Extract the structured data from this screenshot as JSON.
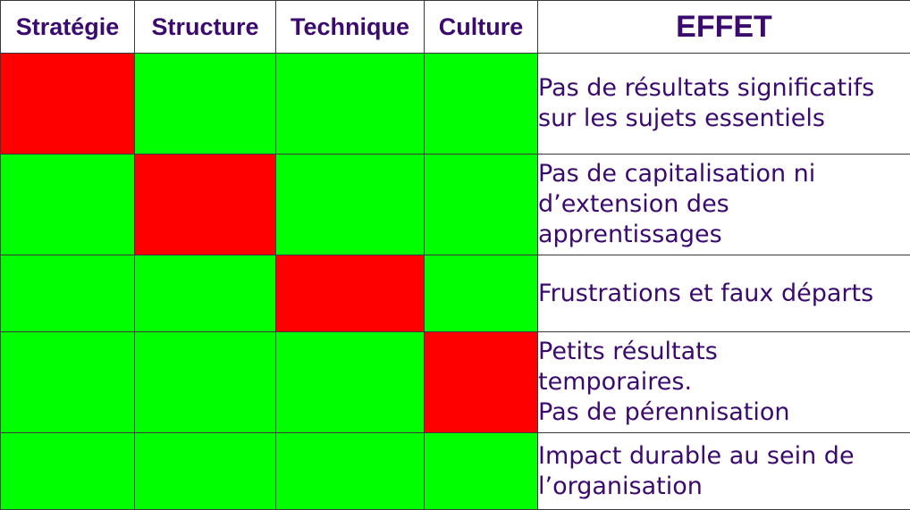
{
  "colors": {
    "fail": "#ff0000",
    "ok": "#00ff00",
    "text": "#3b0a6e"
  },
  "headers": {
    "strategie": "Stratégie",
    "structure": "Structure",
    "technique": "Technique",
    "culture": "Culture",
    "effet": "EFFET"
  },
  "rows": [
    {
      "states": [
        "fail",
        "ok",
        "ok",
        "ok"
      ],
      "effect": "Pas de résultats significatifs\nsur les sujets essentiels"
    },
    {
      "states": [
        "ok",
        "fail",
        "ok",
        "ok"
      ],
      "effect": "Pas de capitalisation ni\nd’extension des\napprentissages"
    },
    {
      "states": [
        "ok",
        "ok",
        "fail",
        "ok"
      ],
      "effect": "Frustrations et faux départs"
    },
    {
      "states": [
        "ok",
        "ok",
        "ok",
        "fail"
      ],
      "effect": "Petits résultats\ntemporaires.\nPas de pérennisation"
    },
    {
      "states": [
        "ok",
        "ok",
        "ok",
        "ok"
      ],
      "effect": "Impact durable au sein de\nl’organisation"
    }
  ]
}
